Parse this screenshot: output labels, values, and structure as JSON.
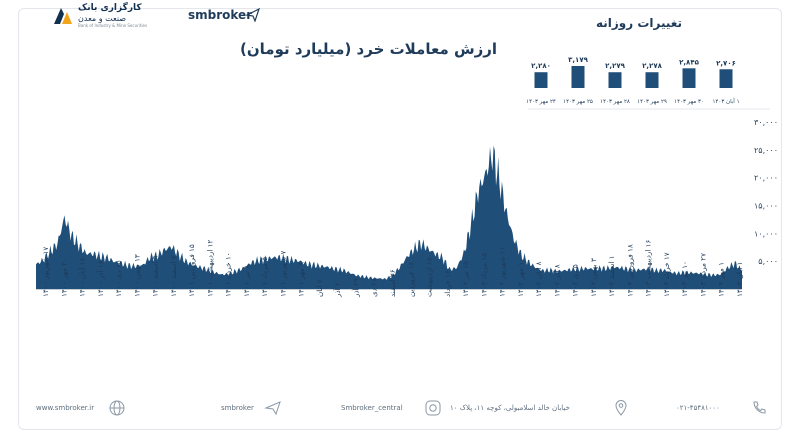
{
  "header": {
    "brand": "smbroker",
    "logo_line1": "کارگزاری بانک",
    "logo_line2": "صنعت و معدن",
    "logo_line3": "Bank of Industry & Mine Securities",
    "title": "ارزش معاملات خرد (میلیارد تومان)"
  },
  "daily": {
    "title": "تغییرات روزانه",
    "bars": [
      {
        "value": 2280,
        "label": "۲,۲۸۰",
        "date": "۲۴ مهر ۱۴۰۳"
      },
      {
        "value": 3179,
        "label": "۳,۱۷۹",
        "date": "۲۵ مهر ۱۴۰۳"
      },
      {
        "value": 2279,
        "label": "۲,۲۷۹",
        "date": "۲۸ مهر ۱۴۰۳"
      },
      {
        "value": 2278,
        "label": "۲,۲۷۸",
        "date": "۲۹ مهر ۱۴۰۳"
      },
      {
        "value": 2845,
        "label": "۲,۸۴۵",
        "date": "۳۰ مهر ۱۴۰۳"
      },
      {
        "value": 2706,
        "label": "۲,۷۰۶",
        "date": "۱ آبان ۱۴۰۳"
      }
    ]
  },
  "chart_data": {
    "type": "area",
    "title": "ارزش معاملات خرد (میلیارد تومان)",
    "ylim": [
      0,
      30000
    ],
    "y_ticks": [
      {
        "value": 5000,
        "label": "۵,۰۰۰"
      },
      {
        "value": 10000,
        "label": "۱۰,۰۰۰"
      },
      {
        "value": 15000,
        "label": "۱۵,۰۰۰"
      },
      {
        "value": 20000,
        "label": "۲۰,۰۰۰"
      },
      {
        "value": 25000,
        "label": "۲۵,۰۰۰"
      },
      {
        "value": 30000,
        "label": "۳۰,۰۰۰"
      }
    ],
    "x_labels": [
      "۱۷ شهریور ۱۴۰۰",
      "۲۰ مهر ۱۴۰۰",
      "۱۸ آبان ۱۴۰۰",
      "۱۸ آذر ۱۴۰۰",
      "۱۵ دی ۱۴۰۰",
      "۱۳ بهمن ۱۴۰۰",
      "۹ اسفند ۱۴۰۰",
      "۷ اسفند ۱۴۰۰",
      "۱۵ فروردین ۱۴۰۱",
      "۱۲ اردیبهشت ۱۴۰۱",
      "۱۰ خرداد ۱۴۰۱",
      "۸ تیر ۱۴۰۱",
      "۵ مرداد ۱۴۰۱",
      "۷ شهریور ۱۴۰۱",
      "۹ مهر ۱۴۰۱",
      "۷ آبان",
      "۲ آذر",
      "۲۹ آذر",
      "۲۸ دی",
      "۲۶ اسفند",
      "۱۸ فروردین",
      "۱۸ اردیبهشت",
      "۱۶ خرداد",
      "۱۵ تیر ۱۴۰۲",
      "۱۵ مرداد ۱۴۰۲",
      "۱۱ شهریور ۱۴۰۲",
      "۱۰ مهر ۱۴۰۲",
      "۸ آبان ۱۴۰۲",
      "۸ آذر ۱۴۰۲",
      "۵ دی ۱۴۰۲",
      "۳ بهمن ۱۴۰۲",
      "۱ اسفند ۱۴۰۲",
      "۱۸ فروردین ۱۴۰۳",
      "۱۶ اردیبهشت ۱۴۰۳",
      "۱۷ خرداد ۱۴۰۳",
      "۱۰ تیر ۱۴۰۳",
      "۲۷ مرداد ۱۴۰۳",
      "۱ مهر ۱۴۰۳",
      "۱ آبان ۱۴۰۳"
    ],
    "values": [
      4400,
      5200,
      6700,
      8100,
      12800,
      9500,
      7900,
      6400,
      6300,
      5900,
      5600,
      4900,
      4600,
      4200,
      4100,
      4300,
      5700,
      6000,
      7000,
      7600,
      6200,
      5000,
      4300,
      3900,
      3500,
      3000,
      2600,
      2700,
      3200,
      3700,
      4600,
      5100,
      5300,
      5600,
      5700,
      5400,
      5200,
      5000,
      4500,
      4300,
      4100,
      3900,
      3600,
      3400,
      2900,
      2400,
      2200,
      2000,
      1900,
      1800,
      2400,
      3900,
      5700,
      7200,
      8200,
      7200,
      6300,
      5600,
      3500,
      3800,
      6400,
      11500,
      17500,
      20500,
      24300,
      19500,
      13500,
      9000,
      6200,
      4900,
      3900,
      3300,
      3400,
      3200,
      3300,
      3500,
      3600,
      3700,
      3600,
      3700,
      3700,
      3900,
      3800,
      3600,
      3400,
      3500,
      3600,
      3300,
      3400,
      3000,
      2800,
      3000,
      2900,
      2800,
      2600,
      2500,
      2600,
      3800,
      4600,
      3300
    ]
  },
  "footer": {
    "website": "www.smbroker.ir",
    "telegram": "smbroker",
    "instagram": "Smbroker_central",
    "address": "خیابان خالد اسلامبولی، کوچه ۱۱، پلاک ۱۰",
    "phone": "۰۲۱-۴۵۴۸۱۰۰۰"
  }
}
